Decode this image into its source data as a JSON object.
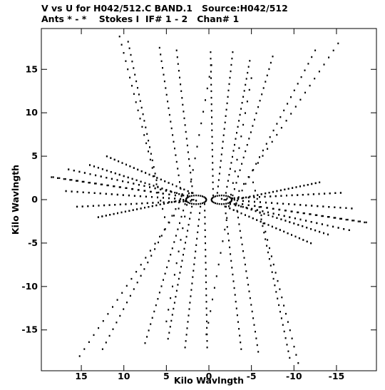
{
  "header": {
    "title": "V vs U for H042/512.C BAND.1   Source:H042/512",
    "subtitle": "Ants * - *    Stokes I  IF# 1 - 2   Chan# 1"
  },
  "chart_data": {
    "type": "scatter",
    "title": "V vs U for H042/512.C BAND.1   Source:H042/512",
    "subtitle": "Ants * - *    Stokes I  IF# 1 - 2   Chan# 1",
    "xlabel": "Kilo Wavlngth",
    "ylabel": "Kilo Wavlngth",
    "xlim": [
      19.7,
      -19.7
    ],
    "ylim": [
      -19.7,
      19.7
    ],
    "xticks": [
      15,
      10,
      5,
      0,
      -5,
      -10,
      -15
    ],
    "yticks": [
      15,
      10,
      5,
      0,
      -5,
      -10,
      -15
    ],
    "grid": false,
    "legend": "none",
    "point_color": "#000000",
    "note": "uv-coverage tracks; points symmetric about origin",
    "tracks": [
      {
        "u": [
          10.5,
          5.2
        ],
        "v": [
          18.8,
          -2.0
        ]
      },
      {
        "u": [
          9.5,
          6.0
        ],
        "v": [
          18.2,
          1.5
        ]
      },
      {
        "u": [
          5.8,
          3.2
        ],
        "v": [
          17.5,
          0.5
        ]
      },
      {
        "u": [
          3.8,
          1.8
        ],
        "v": [
          17.2,
          0.0
        ]
      },
      {
        "u": [
          -0.2,
          -0.5
        ],
        "v": [
          17.0,
          0.5
        ]
      },
      {
        "u": [
          -2.8,
          -1.0
        ],
        "v": [
          17.0,
          0.8
        ]
      },
      {
        "u": [
          -4.8,
          -2.0
        ],
        "v": [
          16.0,
          0.8
        ]
      },
      {
        "u": [
          -7.5,
          -2.8
        ],
        "v": [
          16.5,
          0.5
        ]
      },
      {
        "u": [
          -12.5,
          -3.5
        ],
        "v": [
          17.2,
          0.3
        ]
      },
      {
        "u": [
          -15.2,
          -3.0
        ],
        "v": [
          18.0,
          0.2
        ]
      },
      {
        "u": [
          -5.0,
          0.3
        ],
        "v": [
          14.0,
          -15.5
        ]
      },
      {
        "u": [
          18.3,
          2.5
        ],
        "v": [
          2.6,
          0.3
        ]
      },
      {
        "u": [
          16.8,
          2.0
        ],
        "v": [
          1.0,
          0.0
        ]
      },
      {
        "u": [
          15.5,
          1.5
        ],
        "v": [
          -0.8,
          -0.1
        ]
      },
      {
        "u": [
          16.5,
          2.5
        ],
        "v": [
          3.5,
          0.5
        ]
      },
      {
        "u": [
          14.0,
          3.0
        ],
        "v": [
          4.0,
          0.5
        ]
      },
      {
        "u": [
          12.0,
          2.0
        ],
        "v": [
          5.0,
          0.8
        ]
      },
      {
        "u": [
          13.0,
          3.0
        ],
        "v": [
          -2.0,
          0.0
        ]
      },
      {
        "u": [
          -18.5,
          -2.5
        ],
        "v": [
          -2.6,
          -0.3
        ]
      },
      {
        "u": [
          -16.8,
          -2.0
        ],
        "v": [
          -1.0,
          0.0
        ]
      },
      {
        "u": [
          -15.5,
          -1.5
        ],
        "v": [
          0.8,
          0.1
        ]
      },
      {
        "u": [
          -16.5,
          -2.5
        ],
        "v": [
          -3.5,
          -0.5
        ]
      },
      {
        "u": [
          -14.0,
          -3.0
        ],
        "v": [
          -4.0,
          -0.5
        ]
      },
      {
        "u": [
          -12.0,
          -2.0
        ],
        "v": [
          -5.0,
          -0.8
        ]
      },
      {
        "u": [
          -13.0,
          -3.0
        ],
        "v": [
          2.0,
          0.0
        ]
      }
    ],
    "loops": [
      {
        "cu": 1.5,
        "cv": 0.0,
        "ru": 1.2,
        "rv": 0.5
      },
      {
        "cu": -1.5,
        "cv": 0.0,
        "ru": 1.2,
        "rv": 0.5
      }
    ]
  }
}
